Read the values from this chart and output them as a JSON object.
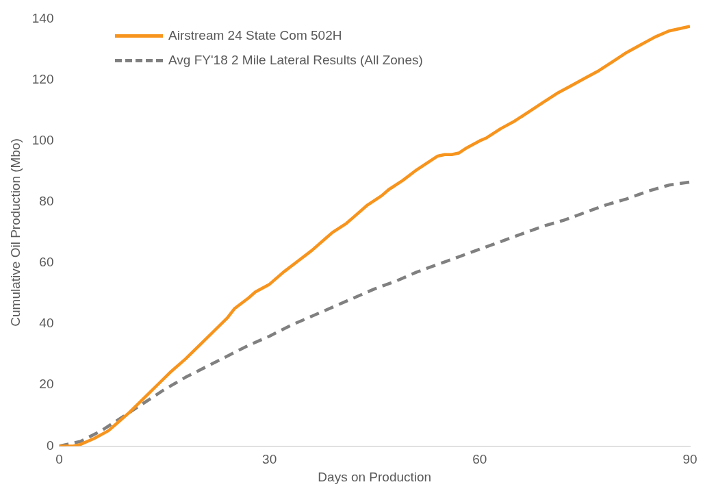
{
  "chart_data": {
    "type": "line",
    "xlabel": "Days on Production",
    "ylabel": "Cumulative Oil Production (Mbo)",
    "xlim": [
      0,
      90
    ],
    "xticks": [
      0,
      30,
      60,
      90
    ],
    "ylim": [
      0,
      140
    ],
    "yticks": [
      0,
      20,
      40,
      60,
      80,
      100,
      120,
      140
    ],
    "grid": false,
    "legend": "top left",
    "marker": "none",
    "series": [
      {
        "name": "Airstream 24 State Com 502H",
        "color": "#f7941d",
        "line_style": "solid",
        "x": [
          0,
          2,
          3,
          5,
          7,
          8,
          10,
          12,
          14,
          16,
          18,
          20,
          22,
          24,
          25,
          27,
          28,
          30,
          32,
          34,
          36,
          38,
          39,
          41,
          42,
          44,
          46,
          47,
          49,
          51,
          52,
          54,
          55,
          56,
          57,
          58,
          60,
          61,
          63,
          65,
          67,
          69,
          71,
          73,
          75,
          77,
          79,
          81,
          83,
          85,
          87,
          89,
          90
        ],
        "values": [
          0,
          0,
          0.5,
          2.5,
          5,
          7,
          11,
          15.5,
          20,
          24.5,
          28.5,
          33,
          37.5,
          42,
          45,
          48.5,
          50.5,
          53,
          57,
          60.5,
          64,
          68,
          70,
          73,
          75,
          79,
          82,
          84,
          87,
          90.5,
          92,
          95,
          95.5,
          95.5,
          96,
          97.5,
          100,
          101,
          104,
          106.5,
          109.5,
          112.5,
          115.5,
          118,
          120.5,
          123,
          126,
          129,
          131.5,
          134,
          136,
          137,
          137.5
        ]
      },
      {
        "name": "Avg FY'18 2 Mile Lateral Results (All Zones)",
        "color": "#808080",
        "line_style": "dashed",
        "x": [
          0,
          3,
          6,
          9,
          12,
          15,
          18,
          21,
          24,
          27,
          30,
          33,
          36,
          39,
          42,
          45,
          48,
          51,
          54,
          57,
          60,
          63,
          66,
          69,
          72,
          75,
          78,
          81,
          84,
          87,
          90
        ],
        "values": [
          0,
          1.5,
          5,
          9.5,
          14,
          18.5,
          22.5,
          26,
          29.5,
          33,
          36,
          39.5,
          42.5,
          45.5,
          48.5,
          51.5,
          54,
          57,
          59.5,
          62,
          64.5,
          67,
          69.5,
          72,
          74,
          76.5,
          79,
          81,
          83.5,
          85.5,
          86.5
        ]
      }
    ]
  }
}
